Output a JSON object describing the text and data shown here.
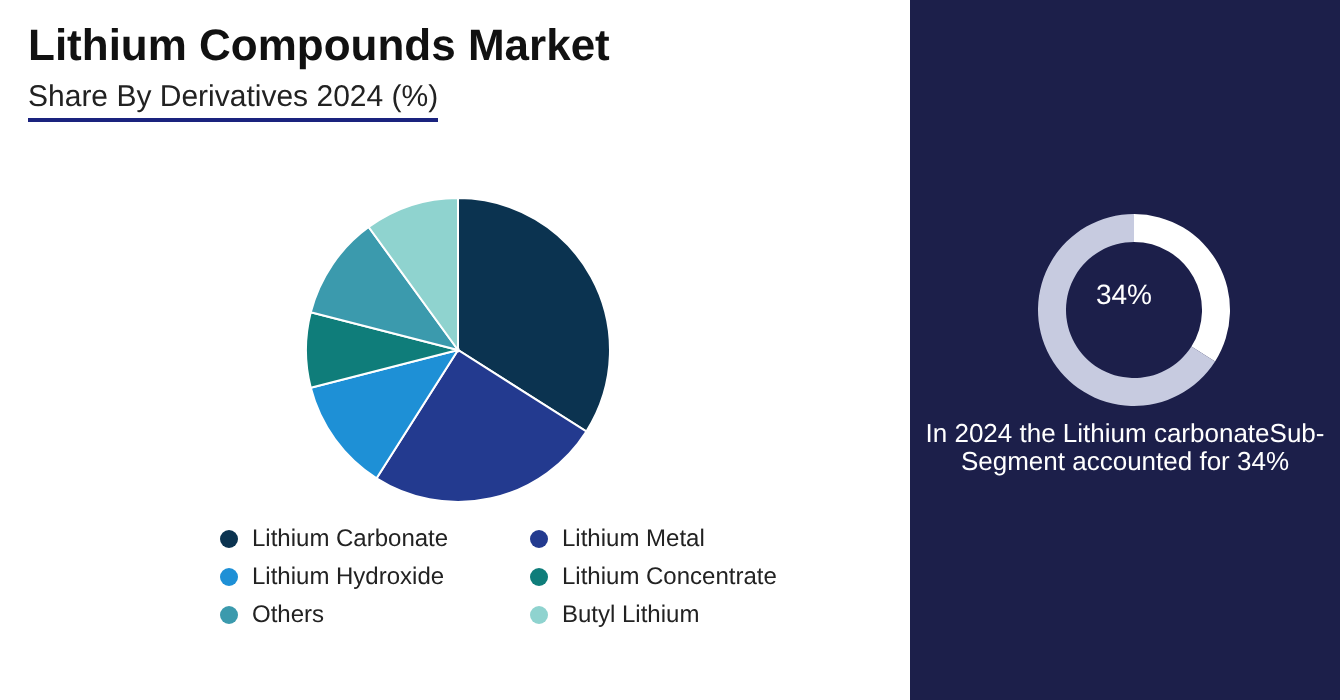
{
  "chart_data": [
    {
      "type": "pie",
      "title": "Lithium Compounds Market",
      "subtitle": "Share By Derivatives 2024 (%)",
      "categories": [
        "Lithium Carbonate",
        "Lithium Metal",
        "Lithium Hydroxide",
        "Lithium Concentrate",
        "Others",
        "Butyl Lithium"
      ],
      "values": [
        34,
        25,
        12,
        8,
        11,
        10
      ],
      "colors": [
        "#0b3350",
        "#233a8f",
        "#1e90d6",
        "#0f7d7a",
        "#3b9aad",
        "#8fd3cf"
      ],
      "legend": "bottom"
    },
    {
      "type": "donut",
      "categories": [
        null,
        null
      ],
      "values": [
        34,
        66
      ],
      "colors": [
        "#ffffff",
        "#c7cbe0"
      ],
      "annotations": [
        "In 2024 the Lithium carbonateSub-Segment accounted for 34%",
        "34%"
      ]
    }
  ]
}
